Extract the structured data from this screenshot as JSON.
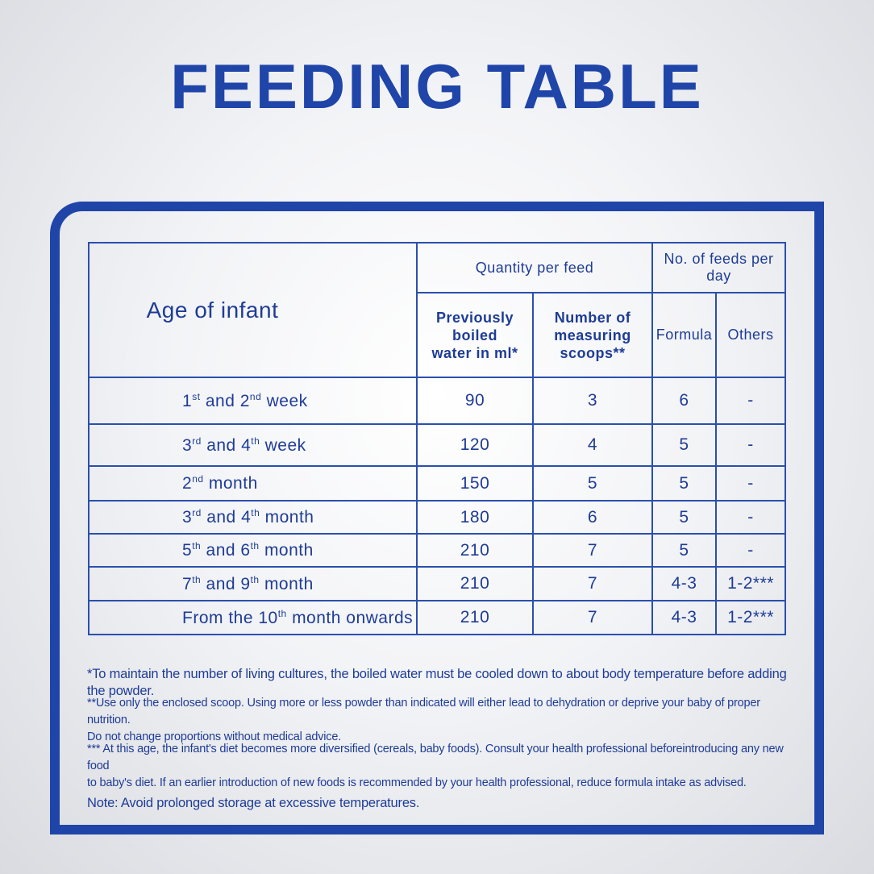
{
  "title": "FEEDING TABLE",
  "table": {
    "header": {
      "age": "Age of infant",
      "quantity": "Quantity per feed",
      "feeds": "No. of feeds per day",
      "water": [
        "Previously boiled",
        "water in ml*"
      ],
      "scoops": [
        "Number of",
        "measuring scoops**"
      ],
      "formula": "Formula",
      "others": "Others"
    },
    "rows": [
      {
        "age": [
          "1",
          "st",
          " and 2",
          "nd",
          " week"
        ],
        "water": 90,
        "scoops": 3,
        "formula": 6,
        "others": "-"
      },
      {
        "age": [
          "3",
          "rd",
          " and 4",
          "th",
          " week"
        ],
        "water": 120,
        "scoops": 4,
        "formula": 5,
        "others": "-"
      },
      {
        "age": [
          "2",
          "nd",
          " month"
        ],
        "water": 150,
        "scoops": 5,
        "formula": 5,
        "others": "-"
      },
      {
        "age": [
          "3",
          "rd",
          " and 4",
          "th",
          " month"
        ],
        "water": 180,
        "scoops": 6,
        "formula": 5,
        "others": "-"
      },
      {
        "age": [
          "5",
          "th",
          " and 6",
          "th",
          " month"
        ],
        "water": 210,
        "scoops": 7,
        "formula": 5,
        "others": "-"
      },
      {
        "age": [
          "7",
          "th",
          " and 9",
          "th",
          " month"
        ],
        "water": 210,
        "scoops": 7,
        "formula": "4-3",
        "others": "1-2***"
      },
      {
        "age": [
          "From the 10",
          "th",
          " month onwards"
        ],
        "water": 210,
        "scoops": 7,
        "formula": "4-3",
        "others": "1-2***"
      }
    ]
  },
  "notes": [
    [
      "*To maintain the number of living cultures, the boiled water must be cooled down to about body temperature before adding the powder."
    ],
    [
      "**Use only the enclosed scoop. Using more or less powder than indicated will either lead to dehydration or deprive your baby of proper nutrition.",
      "Do not change proportions without medical advice."
    ],
    [
      "*** At this age, the infant's diet becomes more diversified (cereals, baby foods). Consult your health professional beforeintroducing any new food",
      "to baby's diet. If an earlier introduction of new foods is recommended by your health professional, reduce formula intake as advised."
    ],
    [
      "Note: Avoid prolonged storage at excessive temperatures."
    ]
  ]
}
